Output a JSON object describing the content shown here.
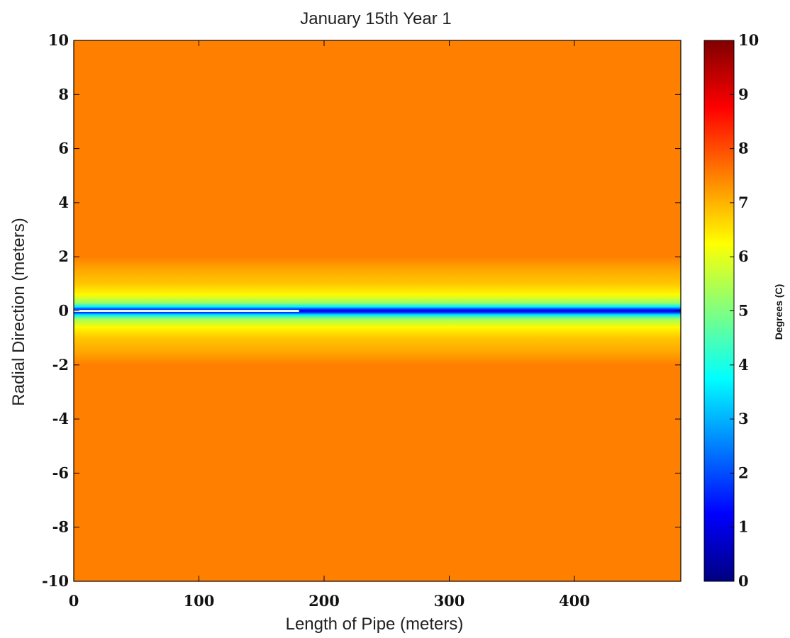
{
  "chart_data": {
    "type": "heatmap",
    "title": "January 15th Year 1",
    "xlabel": "Length of Pipe (meters)",
    "ylabel": "Radial Direction (meters)",
    "xlim": [
      0,
      485
    ],
    "ylim": [
      -10,
      10
    ],
    "x_ticks": [
      0,
      100,
      200,
      300,
      400
    ],
    "y_ticks": [
      -10,
      -8,
      -6,
      -4,
      -2,
      0,
      2,
      4,
      6,
      8,
      10
    ],
    "colorbar": {
      "label": "Degrees (C)",
      "range": [
        0,
        10
      ],
      "ticks": [
        0,
        1,
        2,
        3,
        4,
        5,
        6,
        7,
        8,
        9,
        10
      ],
      "colormap": "jet"
    },
    "background_value": 7.5,
    "radial_profile": [
      {
        "r": -10,
        "value": 7.5
      },
      {
        "r": -2.0,
        "value": 7.5
      },
      {
        "r": -1.5,
        "value": 7.1
      },
      {
        "r": -1.0,
        "value": 6.8
      },
      {
        "r": -0.6,
        "value": 6.3
      },
      {
        "r": -0.3,
        "value": 5.3
      },
      {
        "r": -0.15,
        "value": 3.6
      },
      {
        "r": -0.05,
        "value": 1.6
      },
      {
        "r": 0,
        "value": 1.0
      },
      {
        "r": 0.05,
        "value": 1.6
      },
      {
        "r": 0.15,
        "value": 3.6
      },
      {
        "r": 0.3,
        "value": 5.3
      },
      {
        "r": 0.6,
        "value": 6.3
      },
      {
        "r": 1.0,
        "value": 6.8
      },
      {
        "r": 1.5,
        "value": 7.1
      },
      {
        "r": 2.0,
        "value": 7.5
      },
      {
        "r": 10,
        "value": 7.5
      }
    ],
    "pipe_core_segment": {
      "x_start": 0,
      "x_end": 180,
      "value": 0
    }
  },
  "colors": {
    "background_field": "#ff9900",
    "frame": "#000000"
  }
}
